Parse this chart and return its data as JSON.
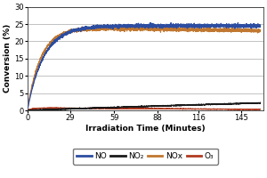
{
  "xlabel": "Irradiation Time (Minutes)",
  "ylabel": "Conversion (%)",
  "xlim": [
    0,
    160
  ],
  "ylim": [
    0,
    30
  ],
  "xticks": [
    0,
    29,
    59,
    88,
    116,
    145
  ],
  "yticks": [
    0,
    5,
    10,
    15,
    20,
    25,
    30
  ],
  "colors": {
    "NO": "#2c4da0",
    "NO2": "#1a1a1a",
    "NOx": "#c07830",
    "O3": "#b03a20"
  },
  "bg_color": "#ffffff",
  "grid_color": "#aaaaaa",
  "legend_labels": [
    "NO",
    "NO₂",
    "NOx",
    "O₃"
  ]
}
